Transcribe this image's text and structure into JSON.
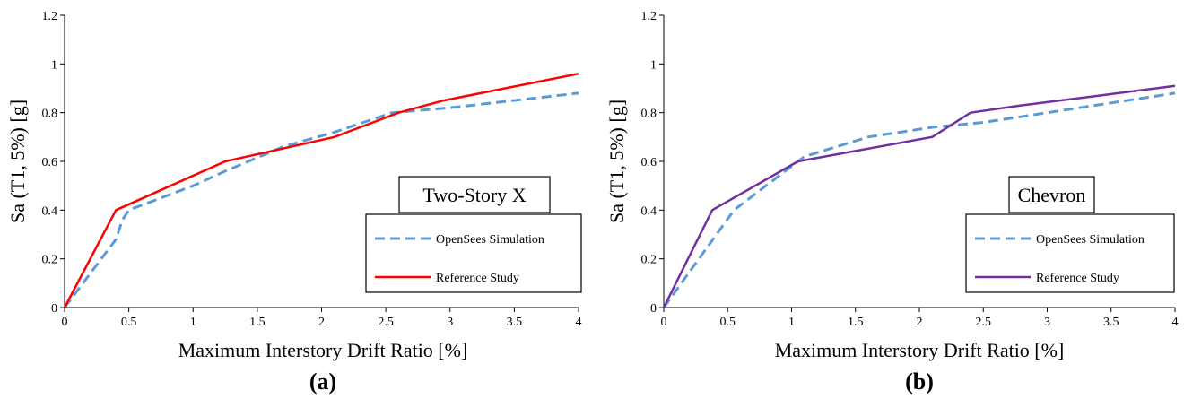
{
  "chart_data": [
    {
      "type": "line",
      "panel_label": "(a)",
      "annotation": "Two-Story X",
      "xlabel": "Maximum Interstory Drift Ratio [%]",
      "ylabel": "Sa (T1, 5%) [g]",
      "xlim": [
        0,
        4
      ],
      "ylim": [
        0,
        1.2
      ],
      "xticks": [
        "0",
        "0.5",
        "1",
        "1.5",
        "2",
        "2.5",
        "3",
        "3.5",
        "4"
      ],
      "yticks": [
        "0",
        "0.2",
        "0.4",
        "0.6",
        "0.8",
        "1",
        "1.2"
      ],
      "grid": false,
      "legend_position": "bottom-right",
      "series": [
        {
          "name": "OpenSees Simulation",
          "color": "#5b9bd5",
          "style": "dashed",
          "x": [
            0,
            0.4,
            0.45,
            0.5,
            1.0,
            1.25,
            1.7,
            2.1,
            2.55,
            3.0,
            4.0
          ],
          "y": [
            0,
            0.28,
            0.36,
            0.4,
            0.5,
            0.56,
            0.66,
            0.72,
            0.8,
            0.82,
            0.88
          ]
        },
        {
          "name": "Reference Study",
          "color": "#ff0000",
          "style": "solid",
          "x": [
            0,
            0.4,
            1.25,
            2.1,
            2.6,
            2.95,
            4.0
          ],
          "y": [
            0,
            0.4,
            0.6,
            0.7,
            0.8,
            0.85,
            0.96
          ]
        }
      ]
    },
    {
      "type": "line",
      "panel_label": "(b)",
      "annotation": "Chevron",
      "xlabel": "Maximum Interstory Drift Ratio [%]",
      "ylabel": "Sa (T1, 5%) [g]",
      "xlim": [
        0,
        4
      ],
      "ylim": [
        0,
        1.2
      ],
      "xticks": [
        "0",
        "0.5",
        "1",
        "1.5",
        "2",
        "2.5",
        "3",
        "3.5",
        "4"
      ],
      "yticks": [
        "0",
        "0.2",
        "0.4",
        "0.6",
        "0.8",
        "1",
        "1.2"
      ],
      "grid": false,
      "legend_position": "bottom-right",
      "series": [
        {
          "name": "OpenSees Simulation",
          "color": "#5b9bd5",
          "style": "dashed",
          "x": [
            0,
            0.55,
            1.0,
            1.1,
            1.6,
            2.1,
            2.5,
            3.0,
            4.0
          ],
          "y": [
            0,
            0.4,
            0.58,
            0.62,
            0.7,
            0.74,
            0.76,
            0.8,
            0.88
          ]
        },
        {
          "name": "Reference Study",
          "color": "#7030a0",
          "style": "solid",
          "x": [
            0,
            0.38,
            1.05,
            2.1,
            2.4,
            2.8,
            3.4,
            4.0
          ],
          "y": [
            0,
            0.4,
            0.6,
            0.7,
            0.8,
            0.83,
            0.87,
            0.91
          ]
        }
      ]
    }
  ]
}
